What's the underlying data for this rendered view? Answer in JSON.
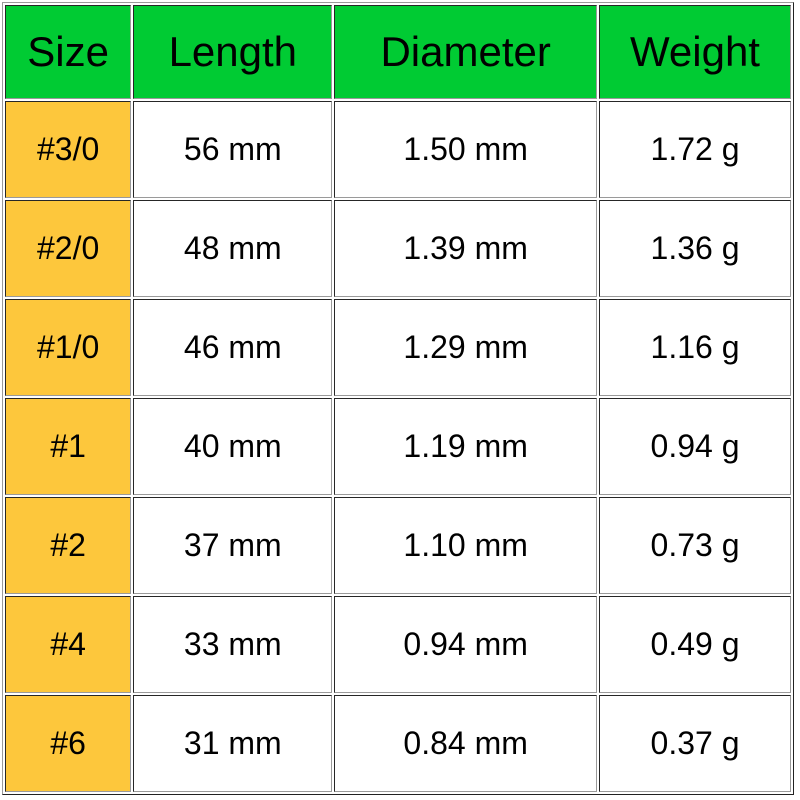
{
  "table": {
    "title": "hook-size-spec-table",
    "headers": {
      "size": "Size",
      "length": "Length",
      "diameter": "Diameter",
      "weight": "Weight"
    },
    "rows": [
      {
        "size": "#3/0",
        "length": "56 mm",
        "diameter": "1.50 mm",
        "weight": "1.72 g"
      },
      {
        "size": "#2/0",
        "length": "48 mm",
        "diameter": "1.39 mm",
        "weight": "1.36 g"
      },
      {
        "size": "#1/0",
        "length": "46 mm",
        "diameter": "1.29 mm",
        "weight": "1.16 g"
      },
      {
        "size": "#1",
        "length": "40 mm",
        "diameter": "1.19 mm",
        "weight": "0.94 g"
      },
      {
        "size": "#2",
        "length": "37 mm",
        "diameter": "1.10 mm",
        "weight": "0.73 g"
      },
      {
        "size": "#4",
        "length": "33 mm",
        "diameter": "0.94 mm",
        "weight": "0.49 g"
      },
      {
        "size": "#6",
        "length": "31 mm",
        "diameter": "0.84 mm",
        "weight": "0.37 g"
      }
    ],
    "colors": {
      "header_bg": "#00cb33",
      "size_column_bg": "#fdc73c",
      "cell_bg": "#ffffff",
      "text": "#000000",
      "border_dark": "#262626",
      "border_light": "#9a9a9a"
    }
  }
}
